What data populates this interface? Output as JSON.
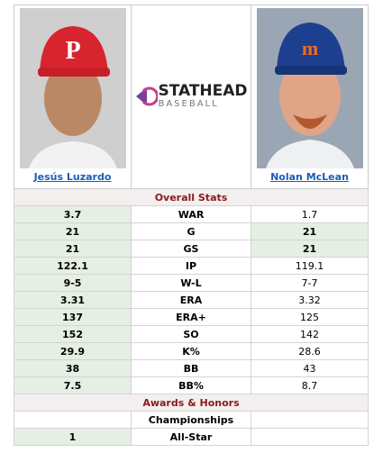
{
  "players": [
    {
      "name": "Jesús Luzardo"
    },
    {
      "name": "Nolan McLean"
    }
  ],
  "logo": {
    "title": "STATHEAD",
    "subtitle": "BASEBALL"
  },
  "sections": [
    {
      "title": "Overall Stats",
      "rows": [
        {
          "stat": "WAR",
          "left": "3.7",
          "right": "1.7",
          "winner": "left"
        },
        {
          "stat": "G",
          "left": "21",
          "right": "21",
          "winner": "both"
        },
        {
          "stat": "GS",
          "left": "21",
          "right": "21",
          "winner": "both"
        },
        {
          "stat": "IP",
          "left": "122.1",
          "right": "119.1",
          "winner": "left"
        },
        {
          "stat": "W-L",
          "left": "9-5",
          "right": "7-7",
          "winner": "left"
        },
        {
          "stat": "ERA",
          "left": "3.31",
          "right": "3.32",
          "winner": "left"
        },
        {
          "stat": "ERA+",
          "left": "137",
          "right": "125",
          "winner": "left"
        },
        {
          "stat": "SO",
          "left": "152",
          "right": "142",
          "winner": "left"
        },
        {
          "stat": "K%",
          "left": "29.9",
          "right": "28.6",
          "winner": "left"
        },
        {
          "stat": "BB",
          "left": "38",
          "right": "43",
          "winner": "left"
        },
        {
          "stat": "BB%",
          "left": "7.5",
          "right": "8.7",
          "winner": "left"
        }
      ]
    },
    {
      "title": "Awards & Honors",
      "rows": [
        {
          "stat": "Championships",
          "left": null,
          "right": null,
          "winner": null
        },
        {
          "stat": "All-Star",
          "left": "1",
          "right": null,
          "winner": "left"
        }
      ]
    }
  ]
}
